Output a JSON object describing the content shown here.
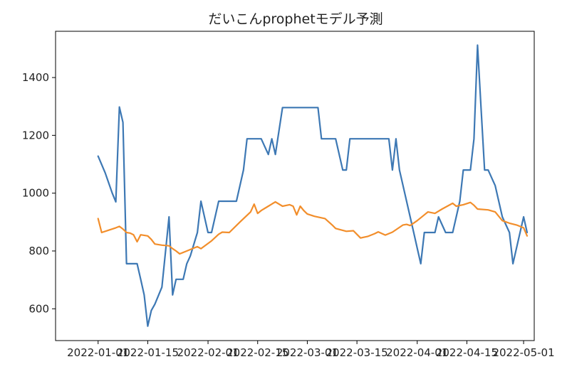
{
  "chart_data": {
    "type": "line",
    "title": "だいこんprophetモデル予測",
    "xlabel": "",
    "ylabel": "",
    "x_type": "date",
    "xlim": [
      "2021-12-20",
      "2022-05-04"
    ],
    "ylim": [
      490,
      1560
    ],
    "grid": false,
    "x_ticks": [
      {
        "date": "2022-01-01",
        "label": "2022-01-01"
      },
      {
        "date": "2022-01-15",
        "label": "2022-01-15"
      },
      {
        "date": "2022-02-01",
        "label": "2022-02-01"
      },
      {
        "date": "2022-02-15",
        "label": "2022-02-15"
      },
      {
        "date": "2022-03-01",
        "label": "2022-03-01"
      },
      {
        "date": "2022-03-15",
        "label": "2022-03-15"
      },
      {
        "date": "2022-04-01",
        "label": "2022-04-01"
      },
      {
        "date": "2022-04-15",
        "label": "2022-04-15"
      },
      {
        "date": "2022-05-01",
        "label": "2022-05-01"
      }
    ],
    "y_ticks": [
      {
        "value": 600,
        "label": "600"
      },
      {
        "value": 800,
        "label": "800"
      },
      {
        "value": 1000,
        "label": "1000"
      },
      {
        "value": 1200,
        "label": "1200"
      },
      {
        "value": 1400,
        "label": "1400"
      }
    ],
    "series": [
      {
        "color": "#3d78b4",
        "points": [
          [
            "2022-01-01",
            1128
          ],
          [
            "2022-01-03",
            1070
          ],
          [
            "2022-01-05",
            1000
          ],
          [
            "2022-01-06",
            970
          ],
          [
            "2022-01-07",
            1298
          ],
          [
            "2022-01-08",
            1245
          ],
          [
            "2022-01-09",
            756
          ],
          [
            "2022-01-12",
            756
          ],
          [
            "2022-01-13",
            702
          ],
          [
            "2022-01-14",
            648
          ],
          [
            "2022-01-15",
            540
          ],
          [
            "2022-01-16",
            594
          ],
          [
            "2022-01-17",
            616
          ],
          [
            "2022-01-19",
            675
          ],
          [
            "2022-01-21",
            918
          ],
          [
            "2022-01-22",
            648
          ],
          [
            "2022-01-23",
            702
          ],
          [
            "2022-01-25",
            702
          ],
          [
            "2022-01-26",
            756
          ],
          [
            "2022-01-27",
            783
          ],
          [
            "2022-01-29",
            864
          ],
          [
            "2022-01-30",
            972
          ],
          [
            "2022-02-01",
            864
          ],
          [
            "2022-02-02",
            864
          ],
          [
            "2022-02-04",
            972
          ],
          [
            "2022-02-09",
            972
          ],
          [
            "2022-02-11",
            1080
          ],
          [
            "2022-02-12",
            1188
          ],
          [
            "2022-02-16",
            1188
          ],
          [
            "2022-02-18",
            1134
          ],
          [
            "2022-02-19",
            1188
          ],
          [
            "2022-02-20",
            1134
          ],
          [
            "2022-02-22",
            1296
          ],
          [
            "2022-03-04",
            1296
          ],
          [
            "2022-03-05",
            1188
          ],
          [
            "2022-03-09",
            1188
          ],
          [
            "2022-03-11",
            1080
          ],
          [
            "2022-03-12",
            1080
          ],
          [
            "2022-03-13",
            1188
          ],
          [
            "2022-03-24",
            1188
          ],
          [
            "2022-03-25",
            1080
          ],
          [
            "2022-03-26",
            1188
          ],
          [
            "2022-03-27",
            1080
          ],
          [
            "2022-03-31",
            864
          ],
          [
            "2022-04-01",
            810
          ],
          [
            "2022-04-02",
            756
          ],
          [
            "2022-04-03",
            864
          ],
          [
            "2022-04-06",
            864
          ],
          [
            "2022-04-07",
            918
          ],
          [
            "2022-04-09",
            864
          ],
          [
            "2022-04-11",
            864
          ],
          [
            "2022-04-13",
            972
          ],
          [
            "2022-04-14",
            1080
          ],
          [
            "2022-04-16",
            1080
          ],
          [
            "2022-04-17",
            1188
          ],
          [
            "2022-04-18",
            1512
          ],
          [
            "2022-04-19",
            1296
          ],
          [
            "2022-04-20",
            1080
          ],
          [
            "2022-04-21",
            1080
          ],
          [
            "2022-04-23",
            1026
          ],
          [
            "2022-04-25",
            918
          ],
          [
            "2022-04-27",
            864
          ],
          [
            "2022-04-28",
            756
          ],
          [
            "2022-04-30",
            864
          ],
          [
            "2022-05-01",
            918
          ],
          [
            "2022-05-02",
            864
          ]
        ]
      },
      {
        "color": "#f28e2b",
        "points": [
          [
            "2022-01-01",
            912
          ],
          [
            "2022-01-02",
            864
          ],
          [
            "2022-01-04",
            872
          ],
          [
            "2022-01-06",
            880
          ],
          [
            "2022-01-07",
            885
          ],
          [
            "2022-01-08",
            876
          ],
          [
            "2022-01-09",
            864
          ],
          [
            "2022-01-10",
            862
          ],
          [
            "2022-01-11",
            856
          ],
          [
            "2022-01-12",
            832
          ],
          [
            "2022-01-13",
            856
          ],
          [
            "2022-01-15",
            852
          ],
          [
            "2022-01-16",
            840
          ],
          [
            "2022-01-17",
            824
          ],
          [
            "2022-01-19",
            820
          ],
          [
            "2022-01-21",
            818
          ],
          [
            "2022-01-22",
            808
          ],
          [
            "2022-01-23",
            800
          ],
          [
            "2022-01-24",
            790
          ],
          [
            "2022-01-26",
            800
          ],
          [
            "2022-01-28",
            810
          ],
          [
            "2022-01-29",
            815
          ],
          [
            "2022-01-30",
            808
          ],
          [
            "2022-02-02",
            835
          ],
          [
            "2022-02-04",
            858
          ],
          [
            "2022-02-05",
            865
          ],
          [
            "2022-02-07",
            864
          ],
          [
            "2022-02-10",
            900
          ],
          [
            "2022-02-13",
            935
          ],
          [
            "2022-02-14",
            962
          ],
          [
            "2022-02-15",
            930
          ],
          [
            "2022-02-16",
            940
          ],
          [
            "2022-02-18",
            955
          ],
          [
            "2022-02-20",
            970
          ],
          [
            "2022-02-22",
            955
          ],
          [
            "2022-02-24",
            960
          ],
          [
            "2022-02-25",
            955
          ],
          [
            "2022-02-26",
            925
          ],
          [
            "2022-02-27",
            955
          ],
          [
            "2022-02-28",
            940
          ],
          [
            "2022-03-01",
            928
          ],
          [
            "2022-03-03",
            920
          ],
          [
            "2022-03-06",
            912
          ],
          [
            "2022-03-08",
            890
          ],
          [
            "2022-03-09",
            878
          ],
          [
            "2022-03-12",
            868
          ],
          [
            "2022-03-14",
            870
          ],
          [
            "2022-03-16",
            845
          ],
          [
            "2022-03-18",
            850
          ],
          [
            "2022-03-20",
            860
          ],
          [
            "2022-03-21",
            866
          ],
          [
            "2022-03-23",
            855
          ],
          [
            "2022-03-25",
            865
          ],
          [
            "2022-03-28",
            890
          ],
          [
            "2022-03-29",
            892
          ],
          [
            "2022-03-30",
            888
          ],
          [
            "2022-04-01",
            905
          ],
          [
            "2022-04-03",
            925
          ],
          [
            "2022-04-04",
            935
          ],
          [
            "2022-04-06",
            930
          ],
          [
            "2022-04-08",
            945
          ],
          [
            "2022-04-11",
            965
          ],
          [
            "2022-04-12",
            955
          ],
          [
            "2022-04-14",
            960
          ],
          [
            "2022-04-16",
            968
          ],
          [
            "2022-04-17",
            958
          ],
          [
            "2022-04-18",
            945
          ],
          [
            "2022-04-21",
            942
          ],
          [
            "2022-04-23",
            935
          ],
          [
            "2022-04-25",
            905
          ],
          [
            "2022-04-27",
            896
          ],
          [
            "2022-04-29",
            890
          ],
          [
            "2022-05-01",
            880
          ],
          [
            "2022-05-02",
            852
          ]
        ]
      }
    ]
  }
}
